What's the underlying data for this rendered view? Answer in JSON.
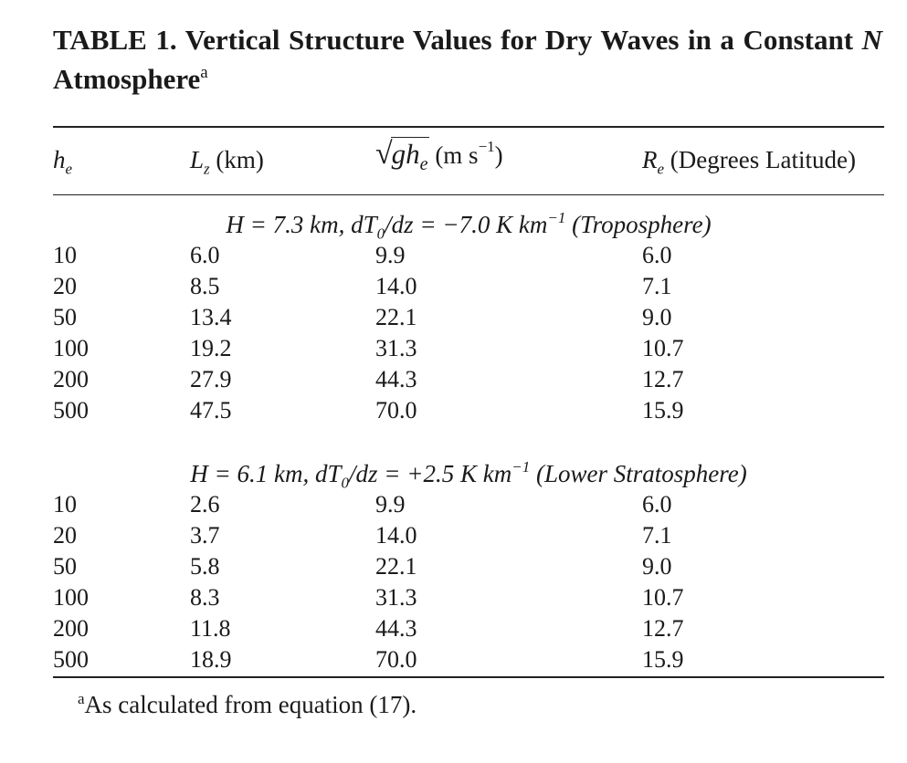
{
  "title": {
    "text": "TABLE 1. Vertical Structure Values for Dry Waves in a Constant",
    "variable": "N",
    "text_end": "Atmosphere",
    "footnote_mark": "a"
  },
  "columns": {
    "he": {
      "symbol": "h",
      "subscript": "e"
    },
    "lz": {
      "symbol": "L",
      "subscript": "z",
      "unit": "(km)"
    },
    "speed": {
      "radicand": "gh",
      "subscript": "e",
      "unit_open": "(m s",
      "unit_exp": "−1",
      "unit_close": ")"
    },
    "re": {
      "symbol": "R",
      "subscript": "e",
      "unit": "(Degrees Latitude)"
    }
  },
  "sections": [
    {
      "label_pre": "H = 7.3 km, dT",
      "label_sub": "0",
      "label_mid": "/dz = −7.0 K km",
      "label_exp": "−1",
      "label_post": "(Troposphere)",
      "rows": [
        {
          "he": "10",
          "lz": "6.0",
          "speed": "9.9",
          "re": "6.0"
        },
        {
          "he": "20",
          "lz": "8.5",
          "speed": "14.0",
          "re": "7.1"
        },
        {
          "he": "50",
          "lz": "13.4",
          "speed": "22.1",
          "re": "9.0"
        },
        {
          "he": "100",
          "lz": "19.2",
          "speed": "31.3",
          "re": "10.7"
        },
        {
          "he": "200",
          "lz": "27.9",
          "speed": "44.3",
          "re": "12.7"
        },
        {
          "he": "500",
          "lz": "47.5",
          "speed": "70.0",
          "re": "15.9"
        }
      ]
    },
    {
      "label_pre": "H = 6.1 km, dT",
      "label_sub": "0",
      "label_mid": "/dz = +2.5 K km",
      "label_exp": "−1",
      "label_post": "(Lower Stratosphere)",
      "rows": [
        {
          "he": "10",
          "lz": "2.6",
          "speed": "9.9",
          "re": "6.0"
        },
        {
          "he": "20",
          "lz": "3.7",
          "speed": "14.0",
          "re": "7.1"
        },
        {
          "he": "50",
          "lz": "5.8",
          "speed": "22.1",
          "re": "9.0"
        },
        {
          "he": "100",
          "lz": "8.3",
          "speed": "31.3",
          "re": "10.7"
        },
        {
          "he": "200",
          "lz": "11.8",
          "speed": "44.3",
          "re": "12.7"
        },
        {
          "he": "500",
          "lz": "18.9",
          "speed": "70.0",
          "re": "15.9"
        }
      ]
    }
  ],
  "footnote": {
    "mark": "a",
    "text": "As calculated from equation (17)."
  }
}
